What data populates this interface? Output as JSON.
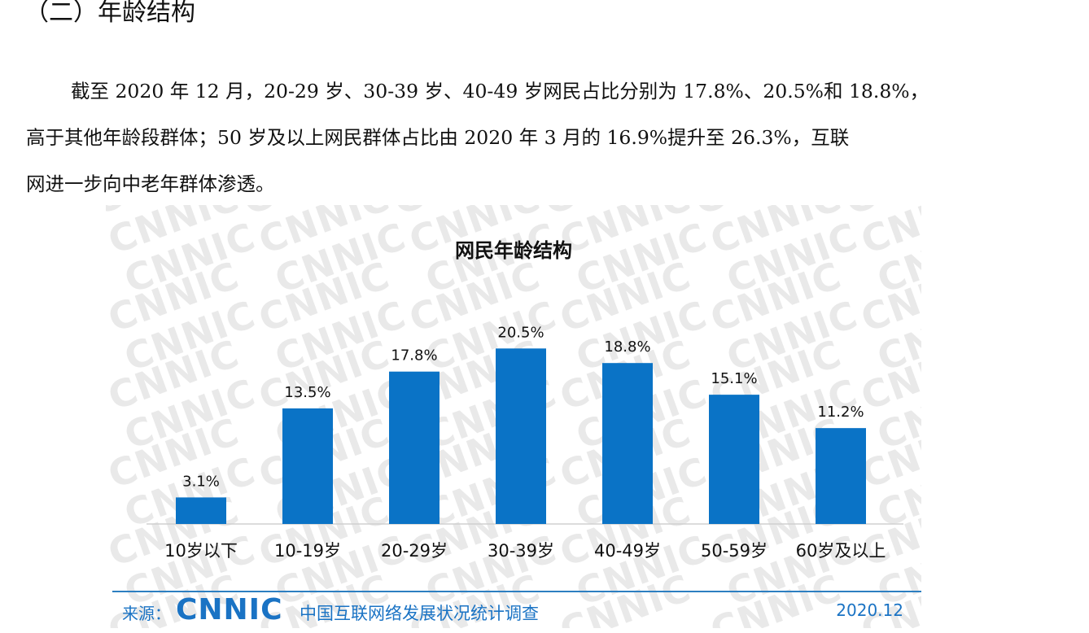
{
  "section_heading": "（二）年龄结构",
  "paragraph": {
    "line1": "截至 2020 年 12 月，20-29 岁、30-39 岁、40-49 岁网民占比分别为 17.8%、20.5%和 18.8%，",
    "line2": "高于其他年龄段群体；50 岁及以上网民群体占比由 2020 年 3 月的 16.9%提升至 26.3%，互联",
    "line3": "网进一步向中老年群体渗透。"
  },
  "watermark_text": "CNNIC",
  "chart_data": {
    "type": "bar",
    "title": "网民年龄结构",
    "categories": [
      "10岁以下",
      "10-19岁",
      "20-29岁",
      "30-39岁",
      "40-49岁",
      "50-59岁",
      "60岁及以上"
    ],
    "values": [
      3.1,
      13.5,
      17.8,
      20.5,
      18.8,
      15.1,
      11.2
    ],
    "value_labels": [
      "3.1%",
      "13.5%",
      "17.8%",
      "20.5%",
      "18.8%",
      "15.1%",
      "11.2%"
    ],
    "unit": "%",
    "ylim": [
      0,
      23
    ],
    "grid": false,
    "bar_color": "#0a73c6",
    "xlabel": "",
    "ylabel": ""
  },
  "footer": {
    "source_label": "来源：",
    "logo_text": "CNNIC",
    "survey_name": "中国互联网络发展状况统计调查",
    "date": "2020.12"
  }
}
